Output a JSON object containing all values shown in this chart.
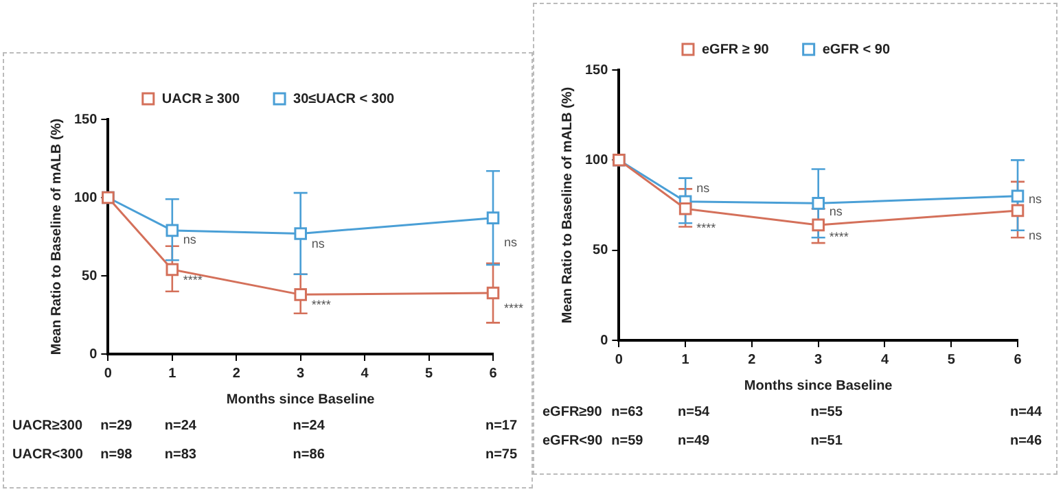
{
  "chart_data": [
    {
      "type": "line",
      "xlabel": "Months since Baseline",
      "ylabel": "Mean Ratio to Baseline of mALB (%)",
      "x": [
        0,
        1,
        3,
        6
      ],
      "xlim": [
        0,
        6
      ],
      "xticks": [
        0,
        1,
        2,
        3,
        4,
        5,
        6
      ],
      "ylim": [
        0,
        150
      ],
      "yticks": [
        0,
        50,
        100,
        150
      ],
      "grid": false,
      "legend": "top",
      "marker": "square",
      "line_style": "solid",
      "series": [
        {
          "name": "UACR ≥ 300",
          "color": "#d4705a",
          "values": [
            100,
            54,
            38,
            39
          ],
          "errors": [
            null,
            [
              40,
              69
            ],
            [
              26,
              51
            ],
            [
              20,
              58
            ]
          ]
        },
        {
          "name": "30≤UACR < 300",
          "color": "#4a9fd6",
          "values": [
            100,
            79,
            77,
            87
          ],
          "errors": [
            null,
            [
              60,
              99
            ],
            [
              51,
              103
            ],
            [
              57,
              117
            ]
          ]
        }
      ],
      "annotations": [
        {
          "text": "ns",
          "x": 1,
          "y": 73
        },
        {
          "text": "****",
          "x": 1,
          "y": 47
        },
        {
          "text": "ns",
          "x": 3,
          "y": 70
        },
        {
          "text": "****",
          "x": 3,
          "y": 31
        },
        {
          "text": "ns",
          "x": 6,
          "y": 71
        },
        {
          "text": "****",
          "x": 6,
          "y": 29
        },
        "UACR≥300",
        "n=29",
        "n=24",
        "n=24",
        "n=17",
        "UACR<300",
        "n=98",
        "n=83",
        "n=86",
        "n=75"
      ]
    },
    {
      "type": "line",
      "xlabel": "Months since Baseline",
      "ylabel": "Mean Ratio to Baseline of mALB (%)",
      "x": [
        0,
        1,
        3,
        6
      ],
      "xlim": [
        0,
        6
      ],
      "xticks": [
        0,
        1,
        2,
        3,
        4,
        5,
        6
      ],
      "ylim": [
        0,
        150
      ],
      "yticks": [
        0,
        50,
        100,
        150
      ],
      "grid": false,
      "legend": "top",
      "marker": "square",
      "line_style": "solid",
      "series": [
        {
          "name": "eGFR ≥ 90",
          "color": "#d4705a",
          "values": [
            100,
            73,
            64,
            72
          ],
          "errors": [
            null,
            [
              63,
              84
            ],
            [
              54,
              73
            ],
            [
              57,
              88
            ]
          ]
        },
        {
          "name": "eGFR < 90",
          "color": "#4a9fd6",
          "values": [
            100,
            77,
            76,
            80
          ],
          "errors": [
            null,
            [
              65,
              90
            ],
            [
              57,
              95
            ],
            [
              61,
              100
            ]
          ]
        }
      ],
      "annotations": [
        {
          "text": "ns",
          "x": 1,
          "y": 84
        },
        {
          "text": "****",
          "x": 1,
          "y": 62
        },
        {
          "text": "ns",
          "x": 3,
          "y": 71
        },
        {
          "text": "****",
          "x": 3,
          "y": 57
        },
        {
          "text": "ns",
          "x": 6,
          "y": 78
        },
        {
          "text": "ns",
          "x": 6,
          "y": 58
        },
        "eGFR≥90",
        "n=63",
        "n=54",
        "n=55",
        "n=44",
        "eGFR<90",
        "n=59",
        "n=49",
        "n=51",
        "n=46"
      ]
    }
  ]
}
